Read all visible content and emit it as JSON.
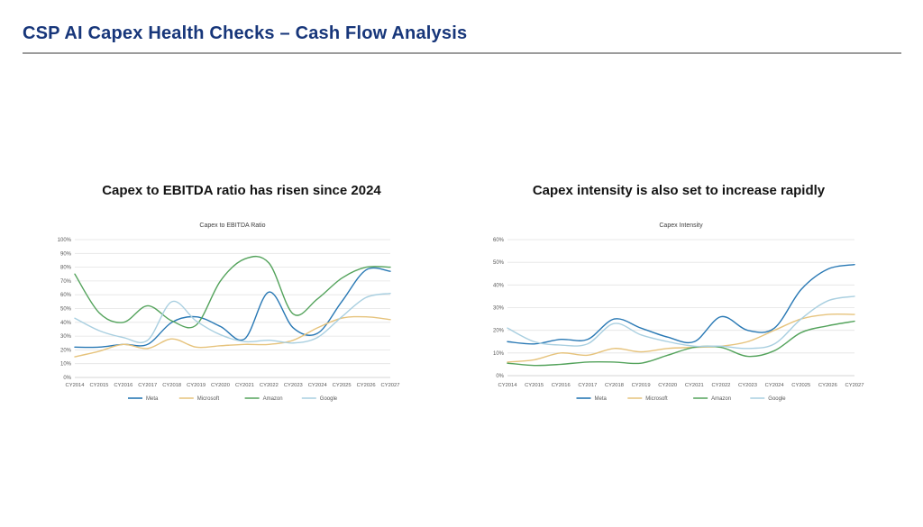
{
  "slide": {
    "title": "CSP AI Capex Health Checks – Cash Flow Analysis",
    "title_color": "#17367a",
    "background_color": "#ffffff"
  },
  "chart_data": [
    {
      "type": "line",
      "heading": "Capex to EBITDA ratio has risen since 2024",
      "title": "Capex to EBITDA Ratio",
      "xlabel": "",
      "ylabel": "",
      "ylim": [
        0,
        100
      ],
      "ytick_step": 10,
      "ytick_suffix": "%",
      "grid": true,
      "legend_position": "bottom",
      "categories": [
        "CY2014",
        "CY2015",
        "CY2016",
        "CY2017",
        "CY2018",
        "CY2019",
        "CY2020",
        "CY2021",
        "CY2022",
        "CY2023",
        "CY2024",
        "CY2025",
        "CY2026",
        "CY2027"
      ],
      "series": [
        {
          "name": "Meta",
          "color": "#2878b4",
          "values": [
            22,
            22,
            24,
            24,
            40,
            44,
            37,
            28,
            62,
            36,
            32,
            55,
            78,
            77
          ]
        },
        {
          "name": "Microsoft",
          "color": "#e6c37c",
          "values": [
            15,
            19,
            24,
            21,
            28,
            22,
            23,
            24,
            24,
            27,
            36,
            43,
            44,
            42
          ]
        },
        {
          "name": "Amazon",
          "color": "#54a35c",
          "values": [
            75,
            47,
            40,
            52,
            41,
            38,
            70,
            86,
            83,
            46,
            57,
            72,
            80,
            80
          ]
        },
        {
          "name": "Google",
          "color": "#a9cfe0",
          "values": [
            43,
            34,
            29,
            27,
            55,
            41,
            31,
            26,
            27,
            25,
            29,
            44,
            58,
            61
          ]
        }
      ]
    },
    {
      "type": "line",
      "heading": "Capex intensity is also set to increase rapidly",
      "title": "Capex Intensity",
      "xlabel": "",
      "ylabel": "",
      "ylim": [
        0,
        60
      ],
      "ytick_step": 10,
      "ytick_suffix": "%",
      "grid": true,
      "legend_position": "bottom",
      "categories": [
        "CY2014",
        "CY2015",
        "CY2016",
        "CY2017",
        "CY2018",
        "CY2019",
        "CY2020",
        "CY2021",
        "CY2022",
        "CY2023",
        "CY2024",
        "CY2025",
        "CY2026",
        "CY2027"
      ],
      "series": [
        {
          "name": "Meta",
          "color": "#2878b4",
          "values": [
            15,
            14,
            16,
            16,
            25,
            21,
            17,
            15,
            26,
            20,
            21,
            38,
            47,
            49
          ]
        },
        {
          "name": "Microsoft",
          "color": "#e6c37c",
          "values": [
            6,
            7,
            10,
            9,
            12,
            10.5,
            12,
            12.5,
            13,
            15,
            20,
            25,
            27,
            27
          ]
        },
        {
          "name": "Amazon",
          "color": "#54a35c",
          "values": [
            5.5,
            4.5,
            5,
            6,
            6,
            5.5,
            9,
            12.5,
            12.5,
            8.5,
            11,
            19,
            22,
            24
          ]
        },
        {
          "name": "Google",
          "color": "#a9cfe0",
          "values": [
            21,
            15,
            13.5,
            14,
            23,
            18,
            15,
            13,
            13,
            12,
            14,
            25,
            33,
            35
          ]
        }
      ]
    }
  ]
}
